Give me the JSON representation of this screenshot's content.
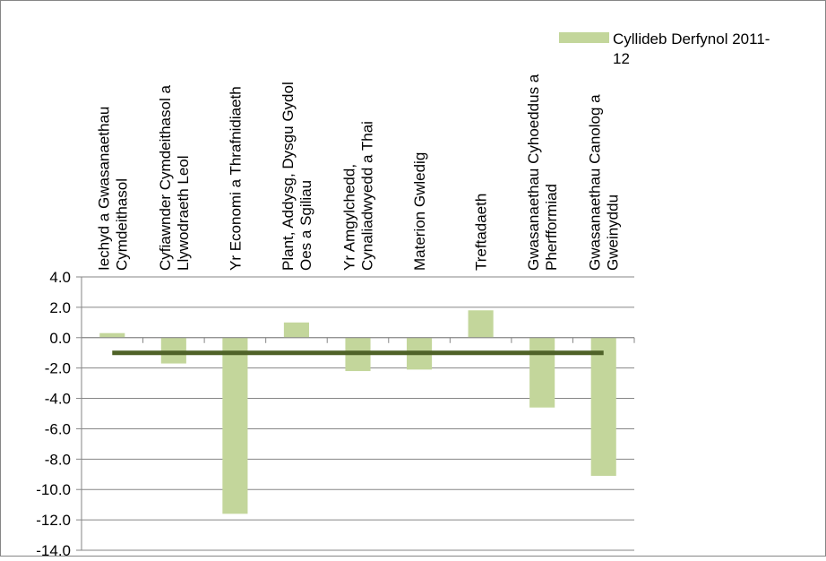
{
  "chart_data": {
    "type": "bar",
    "title": "",
    "xlabel": "",
    "ylabel": "",
    "ylim": [
      -14,
      4
    ],
    "ytick_step": 2,
    "ytick_labels": [
      "4.0",
      "2.0",
      "0.0",
      "-2.0",
      "-4.0",
      "-6.0",
      "-8.0",
      "-10.0",
      "-12.0",
      "-14.0"
    ],
    "grid": true,
    "legend_position": "top-right",
    "categories": [
      [
        "Iechyd a Gwasanaethau",
        "Cymdeithasol"
      ],
      [
        "Cyfiawnder Cymdeithasol a",
        "Llywodraeth Leol"
      ],
      [
        "Yr Economi a Thrafnidiaeth"
      ],
      [
        "Plant, Addysg, Dysgu Gydol",
        "Oes a Sgiliau"
      ],
      [
        "Yr Amgylchedd,",
        "Cynaliadwyedd a Thai"
      ],
      [
        "Materion Gwledig"
      ],
      [
        "Treftadaeth"
      ],
      [
        "Gwasanaethau Cyhoeddus a",
        "Pherfformiad"
      ],
      [
        "Gwasanaethau Canolog a",
        "Gweinyddu"
      ]
    ],
    "series": [
      {
        "name": "Cyllideb Derfynol 2011-12",
        "legend_lines": [
          "Cyllideb Derfynol 2011-",
          "12"
        ],
        "values": [
          0.3,
          -1.7,
          -11.6,
          1.0,
          -2.2,
          -2.1,
          1.8,
          -4.6,
          -9.1
        ]
      }
    ],
    "reference_line": {
      "value": -1.0
    },
    "colors": {
      "bar": "#c3d69b",
      "line": "#4f6228",
      "grid": "#868686",
      "frame": "#868686"
    }
  }
}
